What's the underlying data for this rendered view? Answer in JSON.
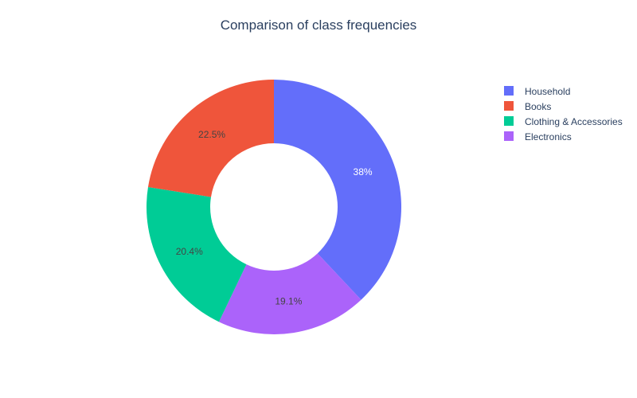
{
  "chart_data": {
    "type": "pie",
    "title": "Comparison of class frequencies",
    "hole": 0.5,
    "direction": "clockwise",
    "legend_position": "top-right",
    "slices": [
      {
        "label": "Household",
        "value": 38.0,
        "display": "38%",
        "color": "#636efa",
        "text_color": "#ffffff"
      },
      {
        "label": "Electronics",
        "value": 19.1,
        "display": "19.1%",
        "color": "#ab63fa",
        "text_color": "#444444"
      },
      {
        "label": "Clothing & Accessories",
        "value": 20.4,
        "display": "20.4%",
        "color": "#00cc96",
        "text_color": "#444444"
      },
      {
        "label": "Books",
        "value": 22.5,
        "display": "22.5%",
        "color": "#ef553b",
        "text_color": "#444444"
      }
    ],
    "legend": [
      "Household",
      "Books",
      "Clothing & Accessories",
      "Electronics"
    ]
  }
}
